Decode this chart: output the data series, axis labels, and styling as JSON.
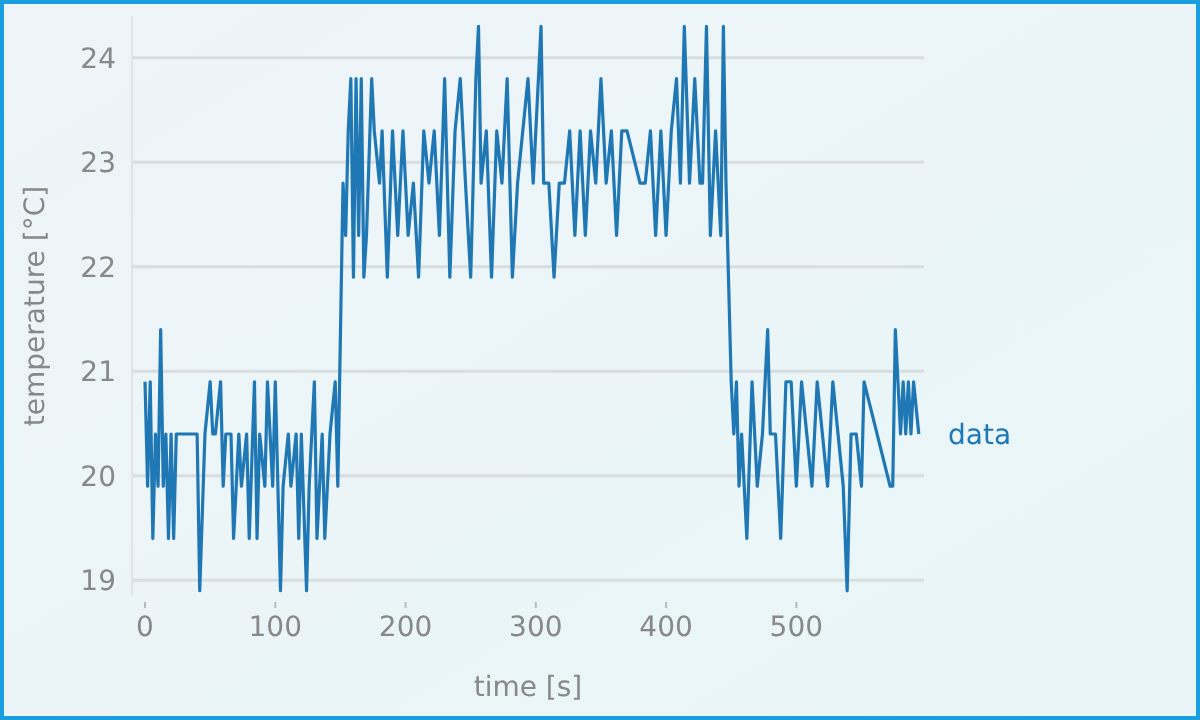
{
  "chart_data": {
    "type": "line",
    "xlabel": "time [s]",
    "ylabel": "temperature [°C]",
    "xlim": [
      -10,
      598
    ],
    "ylim": [
      18.85,
      24.4
    ],
    "xticks": [
      0,
      100,
      200,
      300,
      400,
      500
    ],
    "yticks": [
      19,
      20,
      21,
      22,
      23,
      24
    ],
    "grid": "y",
    "legend": "right",
    "marker": "none",
    "line_style": "solid",
    "series": [
      {
        "name": "data",
        "color": "#1f77b4",
        "x": [
          0,
          2,
          4,
          6,
          8,
          10,
          12,
          14,
          16,
          18,
          20,
          22,
          24,
          26,
          40,
          42,
          46,
          50,
          52,
          54,
          58,
          60,
          62,
          66,
          68,
          72,
          74,
          78,
          80,
          84,
          86,
          88,
          92,
          94,
          98,
          100,
          104,
          106,
          110,
          112,
          116,
          118,
          120,
          124,
          126,
          130,
          132,
          136,
          138,
          142,
          146,
          148,
          152,
          154,
          156,
          158,
          160,
          162,
          164,
          166,
          168,
          170,
          174,
          176,
          180,
          182,
          186,
          190,
          194,
          198,
          202,
          206,
          210,
          214,
          218,
          222,
          226,
          230,
          234,
          238,
          242,
          246,
          250,
          254,
          256,
          258,
          262,
          266,
          270,
          274,
          278,
          282,
          286,
          290,
          294,
          298,
          302,
          304,
          306,
          310,
          314,
          318,
          322,
          326,
          330,
          334,
          338,
          342,
          346,
          350,
          354,
          358,
          362,
          366,
          370,
          380,
          384,
          388,
          392,
          396,
          400,
          404,
          408,
          411,
          414,
          418,
          422,
          426,
          428,
          431,
          434,
          438,
          442,
          444,
          446,
          450,
          452,
          454,
          456,
          458,
          462,
          466,
          470,
          474,
          478,
          480,
          484,
          488,
          492,
          496,
          500,
          504,
          508,
          512,
          516,
          520,
          524,
          528,
          532,
          536,
          539,
          542,
          546,
          550,
          552,
          572,
          574,
          576,
          578,
          580,
          582,
          584,
          586,
          588,
          590,
          594
        ],
        "values": [
          20.9,
          19.9,
          20.9,
          19.4,
          20.4,
          19.9,
          21.4,
          19.9,
          20.4,
          19.4,
          20.4,
          19.4,
          20.4,
          20.4,
          20.4,
          18.9,
          20.4,
          20.9,
          20.4,
          20.4,
          20.9,
          19.9,
          20.4,
          20.4,
          19.4,
          20.4,
          19.9,
          20.4,
          19.4,
          20.9,
          19.4,
          20.4,
          19.9,
          20.9,
          19.9,
          20.9,
          18.9,
          19.9,
          20.4,
          19.9,
          20.4,
          19.4,
          20.4,
          18.9,
          19.9,
          20.9,
          19.4,
          20.4,
          19.4,
          20.4,
          20.9,
          19.9,
          22.8,
          22.3,
          23.3,
          23.8,
          21.9,
          23.8,
          22.3,
          23.8,
          21.9,
          22.3,
          23.8,
          23.3,
          22.8,
          23.3,
          21.9,
          23.3,
          22.3,
          23.3,
          22.3,
          22.8,
          21.9,
          23.3,
          22.8,
          23.3,
          22.3,
          23.8,
          21.9,
          23.3,
          23.8,
          22.8,
          21.9,
          23.8,
          24.3,
          22.8,
          23.3,
          21.9,
          23.3,
          22.8,
          23.8,
          21.9,
          22.8,
          23.3,
          23.8,
          22.8,
          23.8,
          24.3,
          22.8,
          22.8,
          21.9,
          22.8,
          22.8,
          23.3,
          22.3,
          23.3,
          22.3,
          23.3,
          22.8,
          23.8,
          22.8,
          23.3,
          22.3,
          23.3,
          23.3,
          22.8,
          22.8,
          23.3,
          22.3,
          23.3,
          22.3,
          23.3,
          23.8,
          22.8,
          24.3,
          22.8,
          23.8,
          22.8,
          22.8,
          24.3,
          22.3,
          23.3,
          22.3,
          24.3,
          22.8,
          20.9,
          20.4,
          20.9,
          19.9,
          20.4,
          19.4,
          20.9,
          19.9,
          20.4,
          21.4,
          20.4,
          20.4,
          19.4,
          20.9,
          20.9,
          19.9,
          20.9,
          20.4,
          19.9,
          20.9,
          20.4,
          19.9,
          20.9,
          20.4,
          19.9,
          18.9,
          20.4,
          20.4,
          19.9,
          20.9,
          19.9,
          19.9,
          21.4,
          20.9,
          20.4,
          20.9,
          20.4,
          20.9,
          20.4,
          20.9,
          20.4
        ]
      }
    ]
  }
}
